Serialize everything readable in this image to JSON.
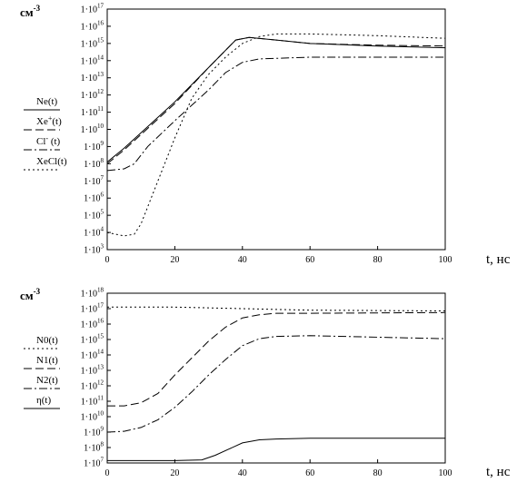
{
  "chart_data": [
    {
      "type": "line",
      "unit_label": "см",
      "unit_exp": "-3",
      "xlabel": "t, нс",
      "xlim": [
        0,
        100
      ],
      "xticks": [
        0,
        20,
        40,
        60,
        80,
        100
      ],
      "y_scale": "log",
      "ylim_exp": [
        3,
        17
      ],
      "ytick_exps": [
        3,
        4,
        5,
        6,
        7,
        8,
        9,
        10,
        11,
        12,
        13,
        14,
        15,
        16,
        17
      ],
      "tick_mantissa": "1·10",
      "grid": false,
      "legend_position": "left",
      "series": [
        {
          "name": "Ne(t)",
          "line": "solid",
          "x": [
            0,
            5,
            10,
            20,
            30,
            38,
            42,
            50,
            60,
            80,
            100
          ],
          "log10_y": [
            8.1,
            8.9,
            9.8,
            11.6,
            13.6,
            15.2,
            15.35,
            15.2,
            15.0,
            14.85,
            14.75
          ]
        },
        {
          "name": "Xe+(t)",
          "name_base": "Xe",
          "name_sup": "+",
          "name_tail": "(t)",
          "line": "dash",
          "x": [
            0,
            5,
            10,
            20,
            30,
            38,
            42,
            50,
            60,
            80,
            100
          ],
          "log10_y": [
            8.0,
            8.8,
            9.7,
            11.5,
            13.6,
            15.2,
            15.35,
            15.2,
            15.0,
            14.9,
            14.85
          ]
        },
        {
          "name": "Cl-(t)",
          "name_base": "Cl",
          "name_sup": "-",
          "name_tail": " (t)",
          "line": "dashdot",
          "x": [
            0,
            5,
            8,
            12,
            20,
            30,
            35,
            40,
            45,
            60,
            100
          ],
          "log10_y": [
            7.6,
            7.7,
            8.0,
            9.0,
            10.5,
            12.3,
            13.3,
            13.9,
            14.1,
            14.2,
            14.2
          ]
        },
        {
          "name": "XeCl(t)",
          "line": "dot",
          "x": [
            0,
            5,
            8,
            10,
            15,
            20,
            25,
            30,
            35,
            40,
            45,
            50,
            60,
            80,
            100
          ],
          "log10_y": [
            4.0,
            3.8,
            3.9,
            4.5,
            7.0,
            9.5,
            11.8,
            13.2,
            14.2,
            15.0,
            15.4,
            15.55,
            15.55,
            15.45,
            15.3
          ]
        }
      ]
    },
    {
      "type": "line",
      "unit_label": "см",
      "unit_exp": "-3",
      "xlabel": "t, нс",
      "xlim": [
        0,
        100
      ],
      "xticks": [
        0,
        20,
        40,
        60,
        80,
        100
      ],
      "y_scale": "log",
      "ylim_exp": [
        7,
        18
      ],
      "ytick_exps": [
        7,
        8,
        9,
        10,
        11,
        12,
        13,
        14,
        15,
        16,
        17,
        18
      ],
      "tick_mantissa": "1·10",
      "grid": false,
      "legend_position": "left",
      "series": [
        {
          "name": "N0(t)",
          "line": "dot",
          "x": [
            0,
            20,
            40,
            60,
            100
          ],
          "log10_y": [
            17.1,
            17.1,
            17.0,
            16.9,
            16.85
          ]
        },
        {
          "name": "N1(t)",
          "line": "dash",
          "x": [
            0,
            5,
            10,
            15,
            20,
            25,
            30,
            35,
            40,
            45,
            50,
            60,
            100
          ],
          "log10_y": [
            10.7,
            10.7,
            10.9,
            11.5,
            12.7,
            13.8,
            14.9,
            15.8,
            16.4,
            16.6,
            16.7,
            16.7,
            16.75
          ]
        },
        {
          "name": "N2(t)",
          "line": "dashdot",
          "x": [
            0,
            5,
            10,
            15,
            20,
            25,
            30,
            35,
            40,
            45,
            50,
            60,
            100
          ],
          "log10_y": [
            9.0,
            9.05,
            9.3,
            9.8,
            10.6,
            11.6,
            12.7,
            13.7,
            14.6,
            15.05,
            15.2,
            15.25,
            15.05
          ]
        },
        {
          "name": "η(t)",
          "line": "solid",
          "x": [
            0,
            10,
            20,
            28,
            32,
            36,
            40,
            45,
            50,
            60,
            100
          ],
          "log10_y": [
            7.15,
            7.15,
            7.15,
            7.2,
            7.5,
            7.9,
            8.3,
            8.5,
            8.55,
            8.6,
            8.6
          ]
        }
      ]
    }
  ]
}
